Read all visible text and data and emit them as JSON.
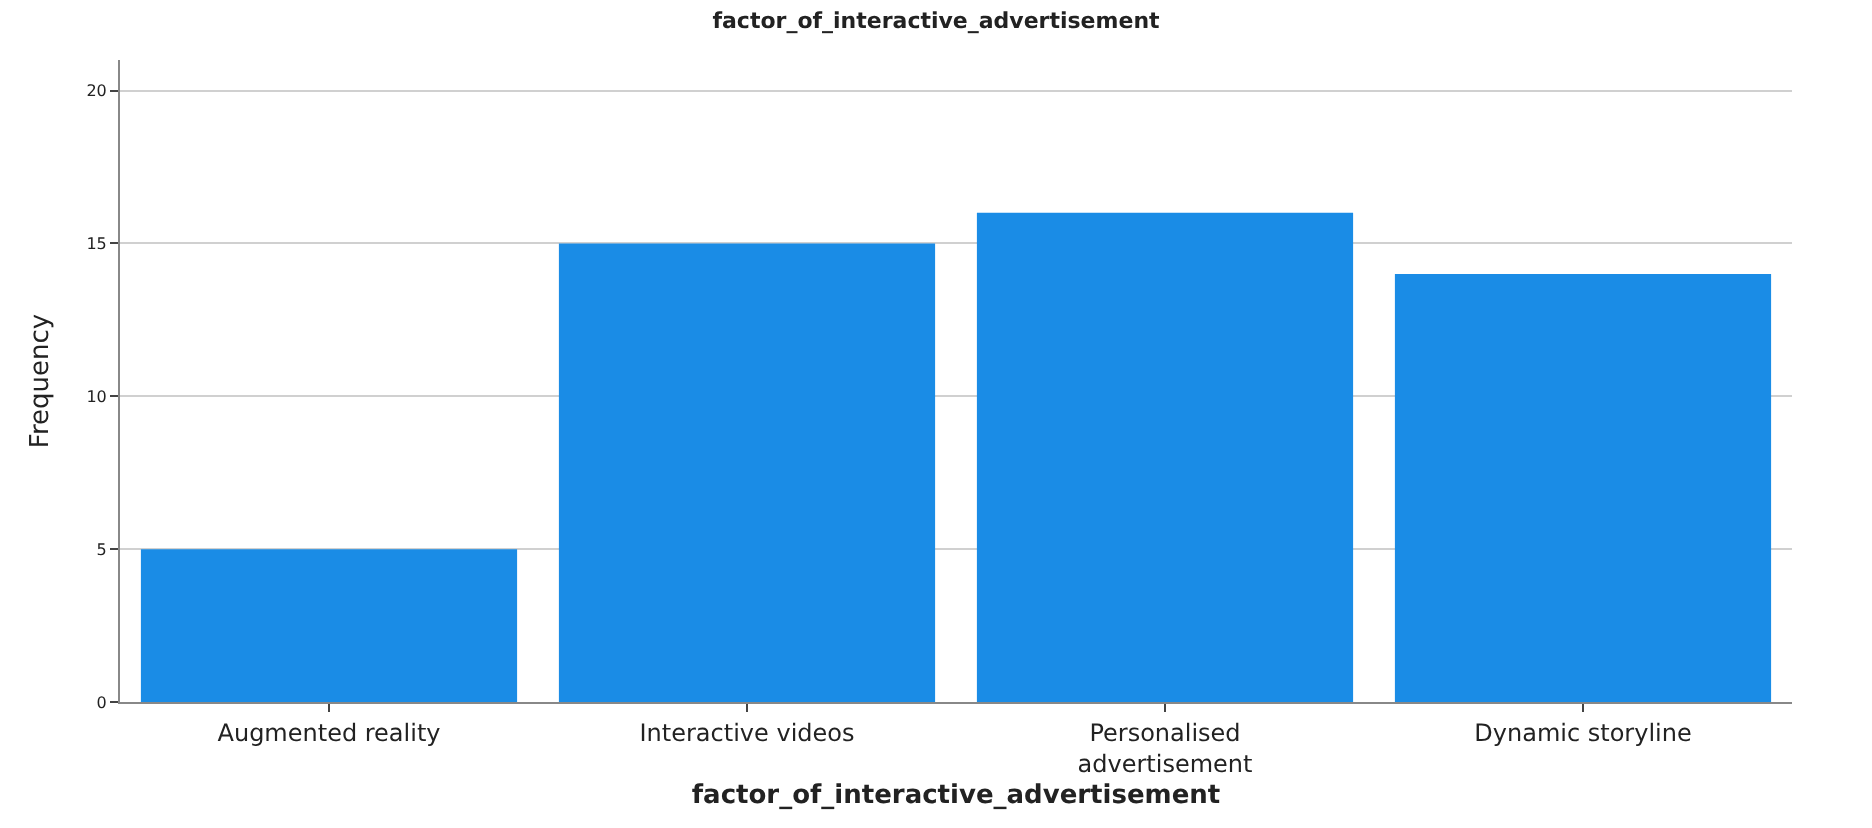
{
  "chart_data": {
    "type": "bar",
    "title": "factor_of_interactive_advertisement",
    "xlabel": "factor_of_interactive_advertisement",
    "ylabel": "Frequency",
    "categories": [
      "Augmented reality",
      "Interactive videos",
      "Personalised advertisement",
      "Dynamic storyline"
    ],
    "values": [
      5,
      15,
      16,
      14
    ],
    "color": "#1a8ce6",
    "ylim": [
      0,
      21
    ],
    "yticks": [
      0,
      5,
      10,
      15,
      20
    ],
    "grid": "y"
  }
}
